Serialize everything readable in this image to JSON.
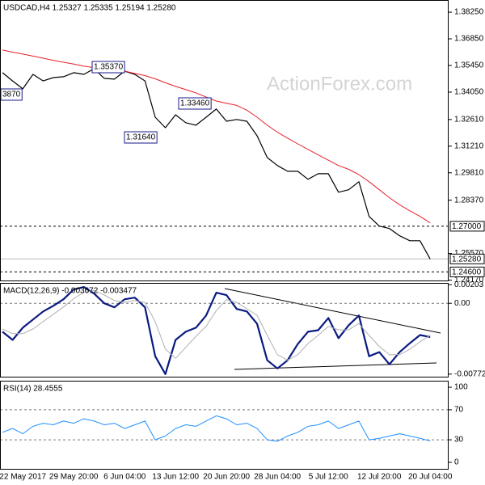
{
  "chart_data": [
    {
      "type": "line",
      "title": "USDCAD,H4 1.25327 1.25335 1.25194 1.25280",
      "watermark": "ActionForex.com",
      "ylim": [
        1.2415,
        1.3889
      ],
      "yticks": [
        {
          "value": 1.3825,
          "label": "1.38250"
        },
        {
          "value": 1.3685,
          "label": "1.36850"
        },
        {
          "value": 1.3545,
          "label": "1.35450"
        },
        {
          "value": 1.3405,
          "label": "1.34050"
        },
        {
          "value": 1.3261,
          "label": "1.32610"
        },
        {
          "value": 1.3121,
          "label": "1.31210"
        },
        {
          "value": 1.2981,
          "label": "1.29810"
        },
        {
          "value": 1.2837,
          "label": "1.28370"
        },
        {
          "value": 1.2557,
          "label": "1.25570"
        },
        {
          "value": 1.2417,
          "label": "1.24170"
        }
      ],
      "levels": [
        {
          "value": 1.27,
          "label": "1.27000"
        },
        {
          "value": 1.246,
          "label": "1.24600"
        }
      ],
      "current": {
        "value": 1.2528,
        "label": "1.25280"
      },
      "annotations": [
        "1.35370",
        "1.33460",
        "1.31640",
        "3870"
      ],
      "series": [
        {
          "color": "#000000",
          "values": [
            1.3507,
            1.3464,
            1.3422,
            1.3498,
            1.3464,
            1.3481,
            1.3486,
            1.3507,
            1.3498,
            1.3528,
            1.3477,
            1.3473,
            1.3515,
            1.3498,
            1.3464,
            1.3273,
            1.3218,
            1.3286,
            1.3244,
            1.3231,
            1.3273,
            1.3316,
            1.3252,
            1.3261,
            1.3252,
            1.3176,
            1.3061,
            1.3019,
            1.2989,
            1.2989,
            1.2947,
            1.2976,
            1.2976,
            1.2879,
            1.2892,
            1.2934,
            1.2752,
            1.2701,
            1.2688,
            1.265,
            1.2624,
            1.2624,
            1.2528
          ]
        },
        {
          "color": "#e8202a",
          "values": [
            1.3626,
            1.3615,
            1.3605,
            1.3594,
            1.3583,
            1.3572,
            1.3562,
            1.3552,
            1.3541,
            1.3534,
            1.3528,
            1.3521,
            1.3515,
            1.3503,
            1.3492,
            1.3475,
            1.3454,
            1.3435,
            1.3418,
            1.3401,
            1.3379,
            1.3358,
            1.3346,
            1.3335,
            1.331,
            1.3273,
            1.3231,
            1.3194,
            1.3163,
            1.3133,
            1.3104,
            1.3075,
            1.3047,
            1.3019,
            1.2999,
            1.2971,
            1.2934,
            1.2892,
            1.285,
            1.2813,
            1.2781,
            1.2752,
            1.2718
          ]
        }
      ]
    },
    {
      "type": "line",
      "title": "MACD(12,26,9) -0.003672 -0.003477",
      "ylim": [
        -0.008,
        0.00222
      ],
      "yticks": [
        {
          "value": 0.00203,
          "label": "0.00203"
        },
        {
          "value": 0,
          "label": "0.00"
        },
        {
          "value": -0.00772,
          "label": "-0.00772"
        }
      ],
      "reference_lines": [
        0
      ],
      "series": [
        {
          "color": "#0a1a80",
          "values": [
            -0.0031,
            -0.00399,
            -0.00266,
            -0.00177,
            -0.00089,
            -0.00027,
            0.00044,
            0.00151,
            0.00177,
            0.00106,
            0,
            -0.00044,
            0.00044,
            0.00062,
            -0.00044,
            -0.00577,
            -0.00772,
            -0.00399,
            -0.0031,
            -0.00266,
            -0.00133,
            0.00115,
            0.00089,
            -0.00062,
            -0.00089,
            -0.00222,
            -0.00621,
            -0.0071,
            -0.00621,
            -0.00444,
            -0.0031,
            -0.00293,
            -0.0016,
            -0.00381,
            -0.00239,
            -0.00133,
            -0.00577,
            -0.00532,
            -0.00665,
            -0.00532,
            -0.00435,
            -0.00346,
            -0.003672
          ]
        },
        {
          "color": "#b0b0b0",
          "values": [
            -0.0028,
            -0.0033,
            -0.0033,
            -0.0028,
            -0.002,
            -0.0012,
            -0.0004,
            0.0005,
            0.0012,
            0.0014,
            0.0009,
            0.0003,
            0.0001,
            0.0003,
            0.0001,
            -0.002,
            -0.005,
            -0.006,
            -0.0048,
            -0.0036,
            -0.0025,
            -0.0008,
            0.0004,
            0.0001,
            -0.0006,
            -0.0013,
            -0.0035,
            -0.0056,
            -0.0062,
            -0.0056,
            -0.0044,
            -0.0035,
            -0.0025,
            -0.0029,
            -0.0029,
            -0.0022,
            -0.0035,
            -0.0047,
            -0.0056,
            -0.0056,
            -0.005,
            -0.0042,
            -0.003477
          ]
        }
      ]
    },
    {
      "type": "line",
      "title": "RSI(14) 28.4555",
      "ylim": [
        -8.7,
        108.7
      ],
      "yticks": [
        100,
        70,
        30,
        0
      ],
      "reference_lines": [
        70,
        30
      ],
      "categories": [
        null,
        null,
        "22 May 2017",
        null,
        null,
        null,
        null,
        "29 May 20:00",
        null,
        null,
        null,
        null,
        "6 Jun 04:00",
        null,
        null,
        null,
        null,
        "13 Jun 12:00",
        null,
        null,
        null,
        null,
        "20 Jun 20:00",
        null,
        null,
        null,
        null,
        "28 Jun 04:00",
        null,
        null,
        null,
        null,
        "5 Jul 12:00",
        null,
        null,
        null,
        null,
        "12 Jul 20:00",
        null,
        null,
        null,
        null,
        "20 Jul 04:00"
      ],
      "series": [
        {
          "color": "#1e90ff",
          "values": [
            40,
            45,
            38,
            48,
            52,
            50,
            55,
            52,
            58,
            55,
            50,
            52,
            45,
            50,
            55,
            30,
            35,
            45,
            50,
            48,
            55,
            62,
            58,
            50,
            52,
            45,
            30,
            28,
            35,
            40,
            48,
            50,
            55,
            45,
            50,
            55,
            30,
            32,
            35,
            38,
            35,
            32,
            28.4555
          ]
        }
      ]
    }
  ]
}
